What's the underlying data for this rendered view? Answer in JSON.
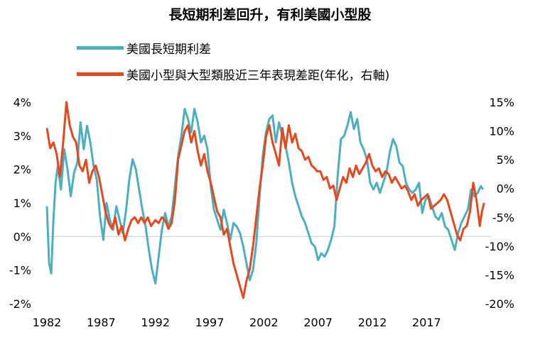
{
  "chart_data": {
    "type": "line",
    "title": "長短期利差回升，有利美國小型股",
    "x_ticks": [
      "1982",
      "1987",
      "1992",
      "1997",
      "2002",
      "2007",
      "2012",
      "2017"
    ],
    "xlim": [
      1982,
      2023
    ],
    "left_axis": {
      "ticks": [
        "4%",
        "3%",
        "2%",
        "1%",
        "0%",
        "-1%",
        "-2%"
      ],
      "ylim": [
        -2,
        4
      ]
    },
    "right_axis": {
      "ticks": [
        "15%",
        "10%",
        "5%",
        "0%",
        "-5%",
        "-10%",
        "-15%",
        "-20%"
      ],
      "ylim": [
        -20,
        15
      ]
    },
    "grid": false,
    "legend_position": "top-left",
    "series": [
      {
        "name": "美國長短期利差",
        "axis": "left",
        "color": "#4ab0c1",
        "points": [
          [
            1982.0,
            0.9
          ],
          [
            1982.2,
            -0.8
          ],
          [
            1982.4,
            -1.1
          ],
          [
            1982.6,
            0.5
          ],
          [
            1982.8,
            1.6
          ],
          [
            1983.0,
            2.1
          ],
          [
            1983.3,
            1.4
          ],
          [
            1983.6,
            2.6
          ],
          [
            1983.9,
            2.0
          ],
          [
            1984.2,
            1.2
          ],
          [
            1984.5,
            1.9
          ],
          [
            1984.8,
            2.2
          ],
          [
            1985.1,
            3.4
          ],
          [
            1985.4,
            2.6
          ],
          [
            1985.7,
            3.3
          ],
          [
            1986.0,
            2.8
          ],
          [
            1986.3,
            2.1
          ],
          [
            1986.6,
            1.7
          ],
          [
            1986.9,
            0.6
          ],
          [
            1987.2,
            -0.1
          ],
          [
            1987.5,
            1.0
          ],
          [
            1987.8,
            0.5
          ],
          [
            1988.1,
            0.2
          ],
          [
            1988.4,
            0.9
          ],
          [
            1988.7,
            0.5
          ],
          [
            1989.0,
            0.1
          ],
          [
            1989.3,
            0.8
          ],
          [
            1989.6,
            1.7
          ],
          [
            1989.9,
            2.3
          ],
          [
            1990.2,
            2.0
          ],
          [
            1990.5,
            1.4
          ],
          [
            1990.8,
            0.8
          ],
          [
            1991.1,
            0.3
          ],
          [
            1991.4,
            -0.4
          ],
          [
            1991.7,
            -1.0
          ],
          [
            1992.0,
            -1.4
          ],
          [
            1992.3,
            -0.6
          ],
          [
            1992.6,
            0.2
          ],
          [
            1992.9,
            0.7
          ],
          [
            1993.2,
            0.3
          ],
          [
            1993.5,
            0.6
          ],
          [
            1993.8,
            1.5
          ],
          [
            1994.1,
            2.4
          ],
          [
            1994.4,
            3.0
          ],
          [
            1994.7,
            3.8
          ],
          [
            1995.0,
            3.5
          ],
          [
            1995.3,
            3.1
          ],
          [
            1995.6,
            3.8
          ],
          [
            1995.9,
            3.4
          ],
          [
            1996.2,
            2.8
          ],
          [
            1996.5,
            3.0
          ],
          [
            1996.8,
            2.6
          ],
          [
            1997.1,
            1.5
          ],
          [
            1997.4,
            0.8
          ],
          [
            1997.7,
            0.5
          ],
          [
            1998.0,
            0.2
          ],
          [
            1998.3,
            0.8
          ],
          [
            1998.6,
            0.4
          ],
          [
            1998.9,
            -0.1
          ],
          [
            1999.2,
            0.4
          ],
          [
            1999.5,
            0.3
          ],
          [
            1999.8,
            0.1
          ],
          [
            2000.1,
            -0.3
          ],
          [
            2000.4,
            -0.8
          ],
          [
            2000.7,
            -1.3
          ],
          [
            2001.0,
            -1.0
          ],
          [
            2001.3,
            -0.2
          ],
          [
            2001.6,
            1.2
          ],
          [
            2001.9,
            2.4
          ],
          [
            2002.2,
            3.1
          ],
          [
            2002.5,
            3.5
          ],
          [
            2002.8,
            3.6
          ],
          [
            2003.1,
            2.8
          ],
          [
            2003.4,
            3.4
          ],
          [
            2003.7,
            3.0
          ],
          [
            2004.0,
            2.7
          ],
          [
            2004.3,
            2.2
          ],
          [
            2004.6,
            1.6
          ],
          [
            2004.9,
            1.2
          ],
          [
            2005.2,
            0.9
          ],
          [
            2005.5,
            0.6
          ],
          [
            2005.8,
            0.4
          ],
          [
            2006.1,
            0.1
          ],
          [
            2006.4,
            -0.2
          ],
          [
            2006.7,
            -0.3
          ],
          [
            2007.0,
            -0.7
          ],
          [
            2007.3,
            -0.5
          ],
          [
            2007.6,
            -0.6
          ],
          [
            2007.9,
            -0.4
          ],
          [
            2008.2,
            -0.1
          ],
          [
            2008.5,
            0.3
          ],
          [
            2008.8,
            1.8
          ],
          [
            2009.1,
            2.9
          ],
          [
            2009.4,
            3.0
          ],
          [
            2009.7,
            3.3
          ],
          [
            2010.0,
            3.7
          ],
          [
            2010.3,
            3.2
          ],
          [
            2010.6,
            3.5
          ],
          [
            2010.9,
            2.8
          ],
          [
            2011.2,
            2.6
          ],
          [
            2011.5,
            2.3
          ],
          [
            2011.8,
            1.6
          ],
          [
            2012.1,
            1.4
          ],
          [
            2012.4,
            1.6
          ],
          [
            2012.7,
            1.3
          ],
          [
            2013.0,
            1.6
          ],
          [
            2013.3,
            1.9
          ],
          [
            2013.6,
            2.5
          ],
          [
            2013.9,
            2.9
          ],
          [
            2014.2,
            2.7
          ],
          [
            2014.5,
            2.2
          ],
          [
            2014.8,
            2.1
          ],
          [
            2015.1,
            1.6
          ],
          [
            2015.4,
            1.4
          ],
          [
            2015.7,
            1.3
          ],
          [
            2016.0,
            1.4
          ],
          [
            2016.3,
            1.6
          ],
          [
            2016.6,
            0.7
          ],
          [
            2016.9,
            1.1
          ],
          [
            2017.2,
            1.2
          ],
          [
            2017.5,
            0.9
          ],
          [
            2017.8,
            0.6
          ],
          [
            2018.1,
            0.5
          ],
          [
            2018.4,
            0.7
          ],
          [
            2018.7,
            0.3
          ],
          [
            2019.0,
            0.2
          ],
          [
            2019.3,
            -0.1
          ],
          [
            2019.6,
            -0.4
          ],
          [
            2019.9,
            0.1
          ],
          [
            2020.2,
            0.4
          ],
          [
            2020.5,
            0.6
          ],
          [
            2020.8,
            0.8
          ],
          [
            2021.1,
            1.4
          ],
          [
            2021.4,
            1.2
          ],
          [
            2021.7,
            1.3
          ],
          [
            2022.0,
            1.5
          ],
          [
            2022.2,
            1.4
          ]
        ]
      },
      {
        "name": "美國小型與大型類股近三年表現差距(年化，右軸)",
        "axis": "right",
        "color": "#e8471d",
        "points": [
          [
            1982.0,
            10.5
          ],
          [
            1982.3,
            7.0
          ],
          [
            1982.6,
            8.0
          ],
          [
            1982.9,
            6.0
          ],
          [
            1983.2,
            2.0
          ],
          [
            1983.5,
            8.0
          ],
          [
            1983.8,
            15.0
          ],
          [
            1984.1,
            11.0
          ],
          [
            1984.4,
            9.0
          ],
          [
            1984.7,
            8.0
          ],
          [
            1985.0,
            4.0
          ],
          [
            1985.3,
            3.0
          ],
          [
            1985.6,
            5.0
          ],
          [
            1985.9,
            1.0
          ],
          [
            1986.2,
            3.0
          ],
          [
            1986.5,
            4.0
          ],
          [
            1986.8,
            2.0
          ],
          [
            1987.1,
            -1.0
          ],
          [
            1987.4,
            -4.0
          ],
          [
            1987.7,
            -6.0
          ],
          [
            1988.0,
            -7.0
          ],
          [
            1988.3,
            -5.0
          ],
          [
            1988.6,
            -8.0
          ],
          [
            1988.9,
            -6.5
          ],
          [
            1989.2,
            -9.0
          ],
          [
            1989.5,
            -7.0
          ],
          [
            1989.8,
            -5.5
          ],
          [
            1990.1,
            -5.0
          ],
          [
            1990.4,
            -6.0
          ],
          [
            1990.7,
            -5.0
          ],
          [
            1991.0,
            -6.0
          ],
          [
            1991.3,
            -5.0
          ],
          [
            1991.6,
            -6.5
          ],
          [
            1992.0,
            -5.5
          ],
          [
            1992.3,
            -6.0
          ],
          [
            1992.6,
            -5.0
          ],
          [
            1992.9,
            -5.5
          ],
          [
            1993.2,
            -7.0
          ],
          [
            1993.5,
            -6.0
          ],
          [
            1993.8,
            -2.0
          ],
          [
            1994.1,
            5.0
          ],
          [
            1994.4,
            7.5
          ],
          [
            1994.7,
            10.0
          ],
          [
            1995.0,
            11.0
          ],
          [
            1995.3,
            8.0
          ],
          [
            1995.6,
            10.0
          ],
          [
            1995.9,
            6.5
          ],
          [
            1996.2,
            4.0
          ],
          [
            1996.5,
            6.0
          ],
          [
            1996.8,
            3.0
          ],
          [
            1997.1,
            1.0
          ],
          [
            1997.4,
            -1.5
          ],
          [
            1997.7,
            -4.0
          ],
          [
            1998.0,
            -5.0
          ],
          [
            1998.3,
            -8.0
          ],
          [
            1998.6,
            -7.0
          ],
          [
            1998.9,
            -10.0
          ],
          [
            1999.2,
            -13.0
          ],
          [
            1999.5,
            -15.0
          ],
          [
            1999.8,
            -17.0
          ],
          [
            2000.1,
            -19.0
          ],
          [
            2000.4,
            -16.0
          ],
          [
            2000.7,
            -14.0
          ],
          [
            2001.0,
            -10.0
          ],
          [
            2001.3,
            -5.0
          ],
          [
            2001.6,
            0.0
          ],
          [
            2001.9,
            4.0
          ],
          [
            2002.2,
            9.0
          ],
          [
            2002.5,
            11.0
          ],
          [
            2002.8,
            8.0
          ],
          [
            2003.1,
            6.0
          ],
          [
            2003.4,
            4.0
          ],
          [
            2003.7,
            10.5
          ],
          [
            2004.0,
            7.0
          ],
          [
            2004.3,
            11.0
          ],
          [
            2004.6,
            8.0
          ],
          [
            2004.9,
            9.5
          ],
          [
            2005.2,
            7.0
          ],
          [
            2005.5,
            6.5
          ],
          [
            2005.8,
            5.0
          ],
          [
            2006.1,
            5.5
          ],
          [
            2006.4,
            4.0
          ],
          [
            2006.7,
            3.5
          ],
          [
            2006.9,
            3.0
          ],
          [
            2007.2,
            3.0
          ],
          [
            2007.5,
            1.5
          ],
          [
            2007.8,
            2.0
          ],
          [
            2008.1,
            0.0
          ],
          [
            2008.4,
            0.5
          ],
          [
            2008.7,
            -2.0
          ],
          [
            2009.0,
            0.0
          ],
          [
            2009.3,
            2.0
          ],
          [
            2009.6,
            1.0
          ],
          [
            2009.9,
            3.5
          ],
          [
            2010.2,
            2.0
          ],
          [
            2010.5,
            4.0
          ],
          [
            2010.8,
            2.5
          ],
          [
            2011.1,
            3.5
          ],
          [
            2011.4,
            4.5
          ],
          [
            2011.7,
            6.0
          ],
          [
            2012.0,
            4.0
          ],
          [
            2012.3,
            3.0
          ],
          [
            2012.6,
            3.5
          ],
          [
            2012.9,
            2.0
          ],
          [
            2013.2,
            3.0
          ],
          [
            2013.5,
            2.5
          ],
          [
            2013.8,
            1.0
          ],
          [
            2014.1,
            2.0
          ],
          [
            2014.4,
            1.0
          ],
          [
            2014.7,
            0.0
          ],
          [
            2015.0,
            0.5
          ],
          [
            2015.3,
            -0.5
          ],
          [
            2015.6,
            -2.0
          ],
          [
            2015.9,
            -1.0
          ],
          [
            2016.2,
            -3.0
          ],
          [
            2016.5,
            -2.0
          ],
          [
            2016.8,
            -1.5
          ],
          [
            2017.1,
            -1.0
          ],
          [
            2017.4,
            -3.5
          ],
          [
            2017.7,
            -3.0
          ],
          [
            2018.0,
            -2.5
          ],
          [
            2018.3,
            -2.0
          ],
          [
            2018.6,
            -1.0
          ],
          [
            2018.9,
            -2.0
          ],
          [
            2019.2,
            -4.0
          ],
          [
            2019.5,
            -6.0
          ],
          [
            2019.8,
            -8.0
          ],
          [
            2020.1,
            -9.0
          ],
          [
            2020.4,
            -7.0
          ],
          [
            2020.7,
            -6.5
          ],
          [
            2021.0,
            -4.0
          ],
          [
            2021.3,
            1.0
          ],
          [
            2021.6,
            -2.0
          ],
          [
            2021.9,
            -6.5
          ],
          [
            2022.1,
            -4.0
          ],
          [
            2022.3,
            -2.5
          ]
        ]
      }
    ]
  }
}
